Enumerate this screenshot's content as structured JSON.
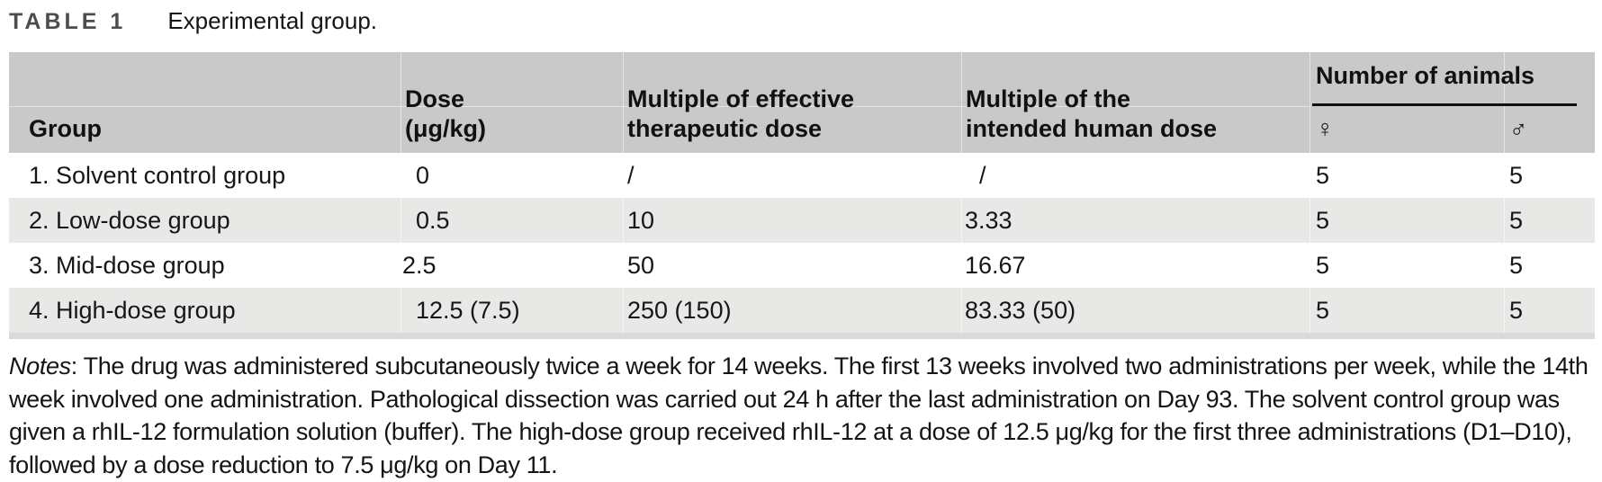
{
  "caption": {
    "label": "TABLE 1",
    "title": "Experimental group."
  },
  "table": {
    "headers": {
      "group": "Group",
      "dose": "Dose\n(μg/kg)",
      "mult_effective": "Multiple of effective\ntherapeutic dose",
      "mult_human": "Multiple of the\nintended human dose",
      "animals_group": "Number of animals",
      "female_symbol": "♀",
      "male_symbol": "♂"
    },
    "rows": [
      {
        "group": "1. Solvent control group",
        "dose": "0",
        "mult_effective": "/",
        "mult_human": "/",
        "female": "5",
        "male": "5"
      },
      {
        "group": "2. Low-dose group",
        "dose": "0.5",
        "mult_effective": "10",
        "mult_human": "3.33",
        "female": "5",
        "male": "5"
      },
      {
        "group": "3. Mid-dose group",
        "dose": "2.5",
        "mult_effective": "50",
        "mult_human": "16.67",
        "female": "5",
        "male": "5"
      },
      {
        "group": "4. High-dose group",
        "dose": "12.5 (7.5)",
        "mult_effective": "250 (150)",
        "mult_human": "83.33 (50)",
        "female": "5",
        "male": "5"
      }
    ]
  },
  "notes": {
    "label": "Notes",
    "text": ": The drug was administered subcutaneously twice a week for 14 weeks. The first 13 weeks involved two administrations per week, while the 14th week involved one administration. Pathological dissection was carried out 24 h after the last administration on Day 93. The solvent control group was given a rhIL-12 formulation solution (buffer). The high-dose group received rhIL-12 at a dose of 12.5 μg/kg for the first three administrations (D1–D10), followed by a dose reduction to 7.5 μg/kg on Day 11."
  },
  "colors": {
    "header_bg": "#c9c9c9",
    "stripe_bg": "#e8e8e6",
    "bottom_strip": "#dadada",
    "rule": "#111111",
    "caption_label": "#4d4d4d",
    "text": "#161616"
  }
}
